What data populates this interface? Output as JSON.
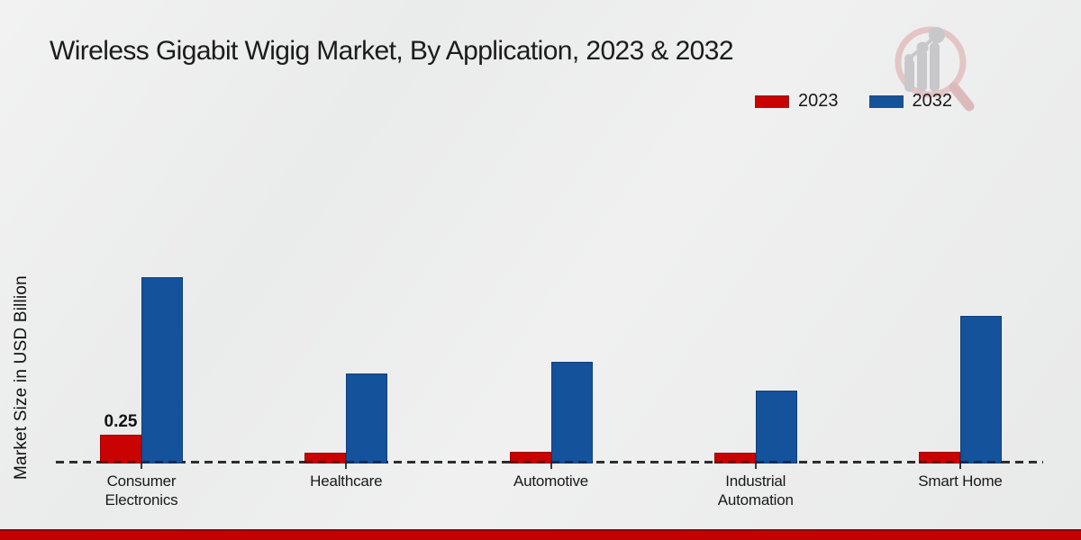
{
  "header": {
    "title": "Wireless Gigabit Wigig Market, By Application, 2023 & 2032"
  },
  "y_axis": {
    "label": "Market Size in USD Billion"
  },
  "legend": {
    "items": [
      {
        "label": "2023",
        "color": "#c90202"
      },
      {
        "label": "2032",
        "color": "#14529b"
      }
    ]
  },
  "chart_data": {
    "type": "bar",
    "title": "Wireless Gigabit Wigig Market, By Application, 2023 & 2032",
    "xlabel": "",
    "ylabel": "Market Size in USD Billion",
    "categories": [
      "Consumer Electronics",
      "Healthcare",
      "Automotive",
      "Industrial Automation",
      "Smart Home"
    ],
    "category_lines": [
      [
        "Consumer",
        "Electronics"
      ],
      [
        "Healthcare"
      ],
      [
        "Automotive"
      ],
      [
        "Industrial",
        "Automation"
      ],
      [
        "Smart Home"
      ]
    ],
    "series": [
      {
        "name": "2023",
        "color": "#c90202",
        "values": [
          0.25,
          0.09,
          0.1,
          0.09,
          0.1
        ]
      },
      {
        "name": "2032",
        "color": "#14529b",
        "values": [
          1.62,
          0.78,
          0.88,
          0.63,
          1.28
        ]
      }
    ],
    "bar_labels": [
      {
        "series": "2023",
        "category": "Consumer Electronics",
        "text": "0.25"
      }
    ],
    "ylim": [
      0,
      1.75
    ],
    "grid": false,
    "baseline_style": "dashed",
    "legend_position": "top-right"
  },
  "icons": {
    "logo": "magnifier-bar-chart-logo"
  },
  "footer": {
    "stripe_color": "#c40101"
  }
}
